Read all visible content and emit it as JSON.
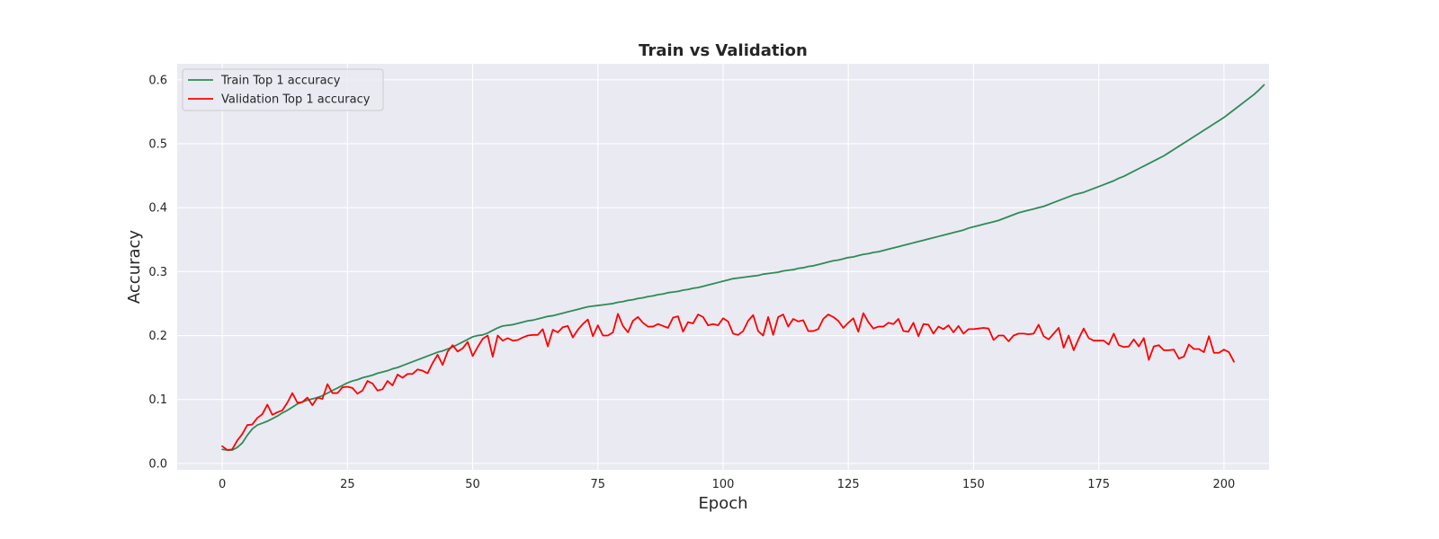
{
  "chart_data": {
    "type": "line",
    "title": "Train vs Validation",
    "xlabel": "Epoch",
    "ylabel": "Accuracy",
    "xlim": [
      -9,
      209
    ],
    "ylim": [
      -0.01,
      0.625
    ],
    "xticks": [
      0,
      25,
      50,
      75,
      100,
      125,
      150,
      175,
      200
    ],
    "yticks": [
      0.0,
      0.1,
      0.2,
      0.3,
      0.4,
      0.5,
      0.6
    ],
    "grid": true,
    "legend_position": "top-left",
    "background_color": "#eaeaf2",
    "series": [
      {
        "name": "Train Top 1 accuracy",
        "color": "#2e8b57",
        "x_start": 0,
        "values": [
          0.022,
          0.021,
          0.021,
          0.025,
          0.032,
          0.044,
          0.054,
          0.06,
          0.063,
          0.066,
          0.07,
          0.074,
          0.079,
          0.083,
          0.088,
          0.093,
          0.096,
          0.099,
          0.101,
          0.103,
          0.106,
          0.11,
          0.114,
          0.118,
          0.122,
          0.126,
          0.129,
          0.131,
          0.134,
          0.136,
          0.138,
          0.141,
          0.143,
          0.145,
          0.148,
          0.15,
          0.153,
          0.156,
          0.159,
          0.162,
          0.165,
          0.168,
          0.171,
          0.174,
          0.176,
          0.179,
          0.182,
          0.186,
          0.19,
          0.194,
          0.198,
          0.2,
          0.201,
          0.204,
          0.208,
          0.212,
          0.215,
          0.216,
          0.217,
          0.219,
          0.221,
          0.223,
          0.224,
          0.226,
          0.228,
          0.23,
          0.231,
          0.233,
          0.235,
          0.237,
          0.239,
          0.241,
          0.243,
          0.245,
          0.246,
          0.247,
          0.248,
          0.249,
          0.25,
          0.252,
          0.253,
          0.255,
          0.256,
          0.258,
          0.259,
          0.261,
          0.262,
          0.264,
          0.265,
          0.267,
          0.268,
          0.269,
          0.271,
          0.272,
          0.274,
          0.275,
          0.277,
          0.279,
          0.281,
          0.283,
          0.285,
          0.287,
          0.289,
          0.29,
          0.291,
          0.292,
          0.293,
          0.294,
          0.296,
          0.297,
          0.298,
          0.299,
          0.301,
          0.302,
          0.303,
          0.305,
          0.306,
          0.308,
          0.309,
          0.311,
          0.313,
          0.315,
          0.317,
          0.318,
          0.32,
          0.322,
          0.323,
          0.325,
          0.327,
          0.328,
          0.33,
          0.331,
          0.333,
          0.335,
          0.337,
          0.339,
          0.341,
          0.343,
          0.345,
          0.347,
          0.349,
          0.351,
          0.353,
          0.355,
          0.357,
          0.359,
          0.361,
          0.363,
          0.365,
          0.368,
          0.37,
          0.372,
          0.374,
          0.376,
          0.378,
          0.38,
          0.383,
          0.386,
          0.389,
          0.392,
          0.394,
          0.396,
          0.398,
          0.4,
          0.402,
          0.405,
          0.408,
          0.411,
          0.414,
          0.417,
          0.42,
          0.422,
          0.424,
          0.427,
          0.43,
          0.433,
          0.436,
          0.439,
          0.442,
          0.446,
          0.449,
          0.453,
          0.457,
          0.461,
          0.465,
          0.469,
          0.473,
          0.477,
          0.481,
          0.486,
          0.491,
          0.496,
          0.501,
          0.506,
          0.511,
          0.516,
          0.521,
          0.526,
          0.531,
          0.536,
          0.541,
          0.547,
          0.553,
          0.559,
          0.565,
          0.571,
          0.577,
          0.584,
          0.592
        ]
      },
      {
        "name": "Validation Top 1 accuracy",
        "color": "#ff0000",
        "x_start": 0,
        "values": [
          0.027,
          0.021,
          0.022,
          0.036,
          0.046,
          0.06,
          0.061,
          0.071,
          0.077,
          0.092,
          0.076,
          0.08,
          0.083,
          0.095,
          0.11,
          0.095,
          0.096,
          0.103,
          0.091,
          0.103,
          0.101,
          0.124,
          0.11,
          0.11,
          0.119,
          0.12,
          0.118,
          0.109,
          0.114,
          0.129,
          0.125,
          0.114,
          0.116,
          0.129,
          0.122,
          0.139,
          0.134,
          0.14,
          0.14,
          0.147,
          0.145,
          0.141,
          0.157,
          0.17,
          0.154,
          0.175,
          0.185,
          0.175,
          0.18,
          0.19,
          0.168,
          0.182,
          0.195,
          0.2,
          0.167,
          0.2,
          0.192,
          0.196,
          0.192,
          0.193,
          0.197,
          0.2,
          0.201,
          0.201,
          0.21,
          0.183,
          0.209,
          0.205,
          0.213,
          0.215,
          0.197,
          0.209,
          0.218,
          0.225,
          0.199,
          0.216,
          0.2,
          0.2,
          0.205,
          0.234,
          0.215,
          0.205,
          0.223,
          0.229,
          0.22,
          0.214,
          0.214,
          0.218,
          0.215,
          0.212,
          0.228,
          0.23,
          0.206,
          0.221,
          0.219,
          0.233,
          0.229,
          0.216,
          0.218,
          0.216,
          0.227,
          0.222,
          0.203,
          0.201,
          0.207,
          0.223,
          0.232,
          0.207,
          0.2,
          0.229,
          0.201,
          0.229,
          0.233,
          0.214,
          0.226,
          0.222,
          0.224,
          0.207,
          0.207,
          0.21,
          0.226,
          0.233,
          0.229,
          0.223,
          0.212,
          0.22,
          0.227,
          0.206,
          0.235,
          0.221,
          0.211,
          0.214,
          0.214,
          0.22,
          0.218,
          0.226,
          0.207,
          0.206,
          0.22,
          0.199,
          0.218,
          0.217,
          0.203,
          0.214,
          0.21,
          0.216,
          0.205,
          0.215,
          0.203,
          0.21,
          0.21,
          0.211,
          0.212,
          0.211,
          0.193,
          0.2,
          0.2,
          0.191,
          0.2,
          0.203,
          0.203,
          0.202,
          0.203,
          0.217,
          0.199,
          0.194,
          0.203,
          0.212,
          0.181,
          0.2,
          0.177,
          0.195,
          0.211,
          0.196,
          0.192,
          0.192,
          0.192,
          0.186,
          0.203,
          0.185,
          0.182,
          0.183,
          0.194,
          0.183,
          0.196,
          0.162,
          0.183,
          0.185,
          0.177,
          0.177,
          0.178,
          0.164,
          0.167,
          0.186,
          0.179,
          0.179,
          0.174,
          0.199,
          0.173,
          0.173,
          0.178,
          0.174,
          0.159
        ]
      }
    ]
  }
}
